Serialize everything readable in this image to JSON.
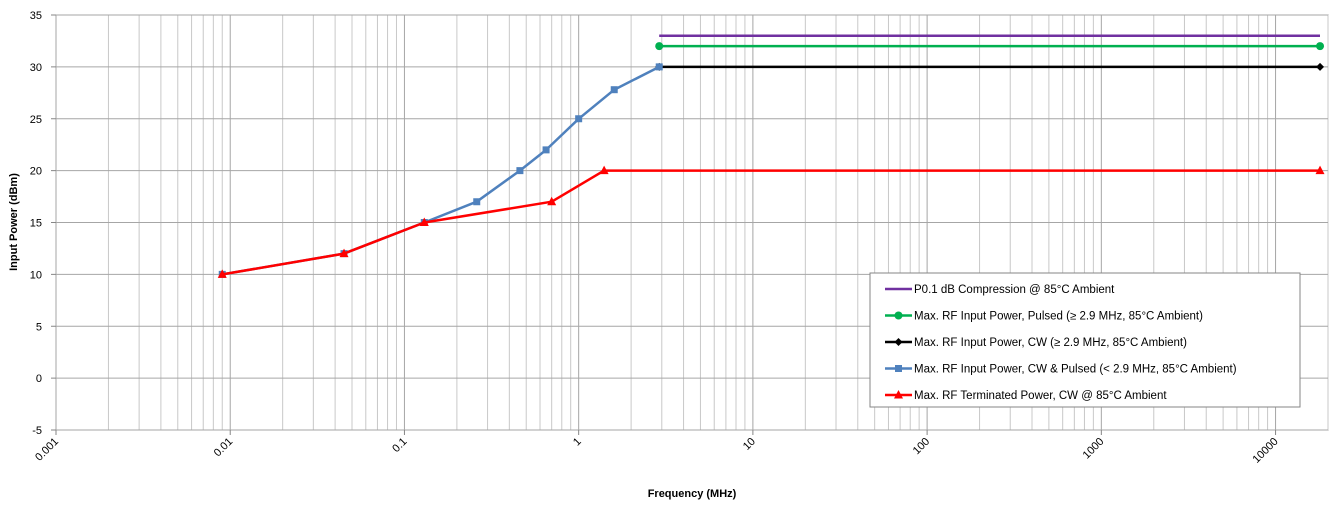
{
  "chart_data": {
    "type": "line",
    "title": "",
    "xlabel": "Frequency (MHz)",
    "ylabel": "Input Power (dBm)",
    "x_scale": "log",
    "xlim": [
      0.001,
      20000
    ],
    "ylim": [
      -5,
      35
    ],
    "x_ticks": [
      "0.001",
      "0.01",
      "0.1",
      "1",
      "10",
      "100",
      "1000",
      "10000"
    ],
    "y_ticks": [
      "-5",
      "0",
      "5",
      "10",
      "15",
      "20",
      "25",
      "30",
      "35"
    ],
    "grid": "major and minor vertical, major horizontal",
    "legend_position": "right",
    "series": [
      {
        "name": "P0.1 dB Compression @ 85°C Ambient",
        "color": "#7030a0",
        "marker": "none",
        "points": [
          [
            2.9,
            33
          ],
          [
            18000,
            33
          ]
        ]
      },
      {
        "name": "Max. RF Input Power, Pulsed (≥ 2.9 MHz, 85°C Ambient)",
        "color": "#00b050",
        "marker": "circle",
        "points": [
          [
            2.9,
            32
          ],
          [
            18000,
            32
          ]
        ]
      },
      {
        "name": "Max. RF Input Power, CW (≥ 2.9 MHz, 85°C Ambient)",
        "color": "#000000",
        "marker": "diamond",
        "points": [
          [
            2.9,
            30
          ],
          [
            18000,
            30
          ]
        ]
      },
      {
        "name": "Max. RF Input Power, CW & Pulsed (< 2.9 MHz, 85°C Ambient)",
        "color": "#4f81bd",
        "marker": "square",
        "points": [
          [
            0.009,
            10
          ],
          [
            0.045,
            12
          ],
          [
            0.13,
            15
          ],
          [
            0.26,
            17
          ],
          [
            0.46,
            20
          ],
          [
            0.65,
            22
          ],
          [
            1.0,
            25
          ],
          [
            1.6,
            27.8
          ],
          [
            2.9,
            30
          ]
        ]
      },
      {
        "name": "Max. RF Terminated Power, CW @ 85°C Ambient",
        "color": "#ff0000",
        "marker": "triangle",
        "points": [
          [
            0.009,
            10
          ],
          [
            0.045,
            12
          ],
          [
            0.13,
            15
          ],
          [
            0.7,
            17
          ],
          [
            1.4,
            20
          ],
          [
            18000,
            20
          ]
        ]
      }
    ]
  }
}
